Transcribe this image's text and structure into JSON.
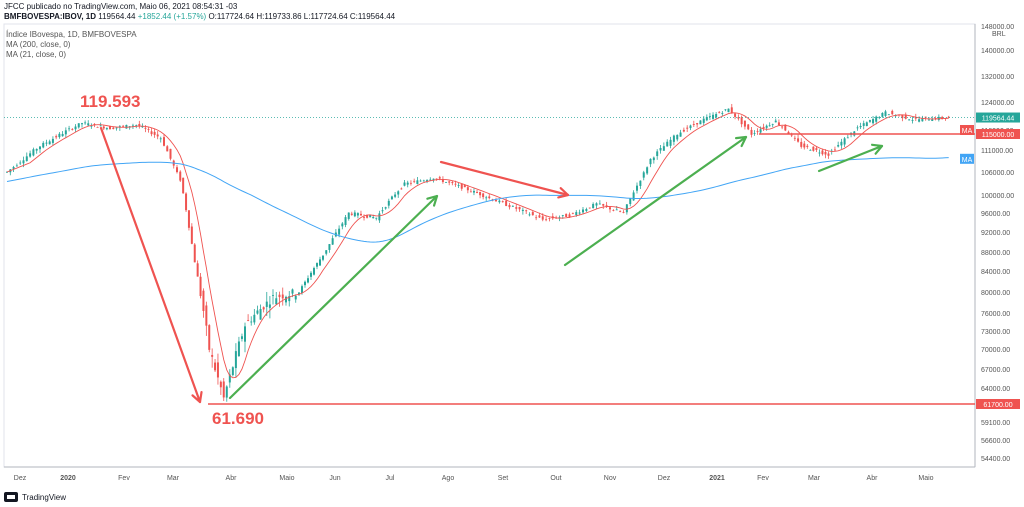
{
  "header": {
    "publisher": "JFCC publicado no TradingView.com, Maio 06, 2021 08:54:31 -03",
    "symbol": "BMFBOVESPA:IBOV, 1D",
    "last": "119564.44",
    "change": "+1852.44 (+1.57%)",
    "ohlc": "O:117724.64  H:119733.86  L:117724.64  C:119564.44"
  },
  "indicators": {
    "title": "Índice IBovespa, 1D, BMFBOVESPA",
    "ma200": "MA (200, close, 0)",
    "ma21": "MA (21, close, 0)"
  },
  "footer": {
    "brand": "TradingView"
  },
  "colors": {
    "up": "#26a69a",
    "down": "#ef5350",
    "ma21": "#ef5350",
    "ma200": "#42a5f5",
    "annot_red": "#ef5350",
    "annot_green": "#4caf50"
  },
  "chart_data": {
    "type": "candlestick",
    "currency": "BRL",
    "y_ticks": [
      54400,
      56600,
      59100,
      61700,
      64000,
      67000,
      70000,
      73000,
      76000,
      80000,
      84000,
      88000,
      92000,
      96000,
      100000,
      106000,
      111000,
      116000,
      124000,
      132000,
      140000,
      148000
    ],
    "x_ticks": [
      "Dez",
      "2020",
      "Fev",
      "Mar",
      "Abr",
      "Maio",
      "Jun",
      "Jul",
      "Ago",
      "Set",
      "Out",
      "Nov",
      "Dez",
      "2021",
      "Fev",
      "Mar",
      "Abr",
      "Maio"
    ],
    "price_labels": [
      {
        "text": "119564.44",
        "value": 119564.44
      },
      {
        "text": "115000.00",
        "value": 115000
      },
      {
        "text": "61700.00",
        "value": 61700
      },
      {
        "text": "MA",
        "value": 116000
      },
      {
        "text": "MA",
        "value": 109000
      }
    ],
    "annotations": [
      {
        "text": "119.593",
        "value": 119593
      },
      {
        "text": "61.690",
        "value": 61690
      }
    ],
    "horizontal_lines": [
      {
        "value": 115000,
        "from": "2021-01",
        "to": "2021-05"
      },
      {
        "value": 61700,
        "from": "2020-03",
        "to": "2021-05"
      }
    ],
    "close_monthly": [
      {
        "d": "2019-11",
        "c": 108000
      },
      {
        "d": "2019-12",
        "c": 115600
      },
      {
        "d": "2020-01",
        "c": 116000
      },
      {
        "d": "2020-02",
        "c": 104000
      },
      {
        "d": "2020-03",
        "c": 73000
      },
      {
        "d": "2020-04",
        "c": 80500
      },
      {
        "d": "2020-05",
        "c": 87400
      },
      {
        "d": "2020-06",
        "c": 95000
      },
      {
        "d": "2020-07",
        "c": 102900
      },
      {
        "d": "2020-08",
        "c": 99300
      },
      {
        "d": "2020-09",
        "c": 94600
      },
      {
        "d": "2020-10",
        "c": 93900
      },
      {
        "d": "2020-11",
        "c": 108900
      },
      {
        "d": "2020-12",
        "c": 119000
      },
      {
        "d": "2021-01",
        "c": 115000
      },
      {
        "d": "2021-02",
        "c": 110000
      },
      {
        "d": "2021-03",
        "c": 116600
      },
      {
        "d": "2021-04",
        "c": 119000
      },
      {
        "d": "2021-05",
        "c": 119564
      }
    ]
  }
}
